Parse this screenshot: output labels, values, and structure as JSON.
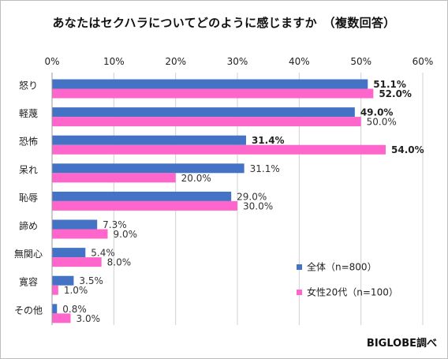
{
  "title": "あなたはセクハラについてどのように感じますか　（複数回答）",
  "credit": "BIGLOBE調べ",
  "colors": {
    "series1": "#4472C4",
    "series2": "#FF66CC",
    "grid": "#d0d0d0"
  },
  "chart_data": {
    "type": "bar",
    "orientation": "horizontal",
    "title": "あなたはセクハラについてどのように感じますか　（複数回答）",
    "categories": [
      "怒り",
      "軽蔑",
      "恐怖",
      "呆れ",
      "恥辱",
      "諦め",
      "無関心",
      "寛容",
      "その他"
    ],
    "series": [
      {
        "name": "全体（n=800）",
        "values": [
          51.1,
          49.0,
          31.4,
          31.1,
          29.0,
          7.3,
          5.4,
          3.5,
          0.8
        ],
        "labels": [
          "51.1%",
          "49.0%",
          "31.4%",
          "31.1%",
          "29.0%",
          "7.3%",
          "5.4%",
          "3.5%",
          "0.8%"
        ],
        "bold": [
          true,
          true,
          true,
          false,
          false,
          false,
          false,
          false,
          false
        ]
      },
      {
        "name": "女性20代（n=100）",
        "values": [
          52.0,
          50.0,
          54.0,
          20.0,
          30.0,
          9.0,
          8.0,
          1.0,
          3.0
        ],
        "labels": [
          "52.0%",
          "50.0%",
          "54.0%",
          "20.0%",
          "30.0%",
          "9.0%",
          "8.0%",
          "1.0%",
          "3.0%"
        ],
        "bold": [
          true,
          false,
          true,
          false,
          false,
          false,
          false,
          false,
          false
        ]
      }
    ],
    "xlim": [
      0,
      60
    ],
    "xticks": [
      0,
      10,
      20,
      30,
      40,
      50,
      60
    ],
    "xtick_labels": [
      "0%",
      "10%",
      "20%",
      "30%",
      "40%",
      "50%",
      "60%"
    ],
    "axis_position": "top",
    "grid": true,
    "legend_position": "bottom-right"
  }
}
